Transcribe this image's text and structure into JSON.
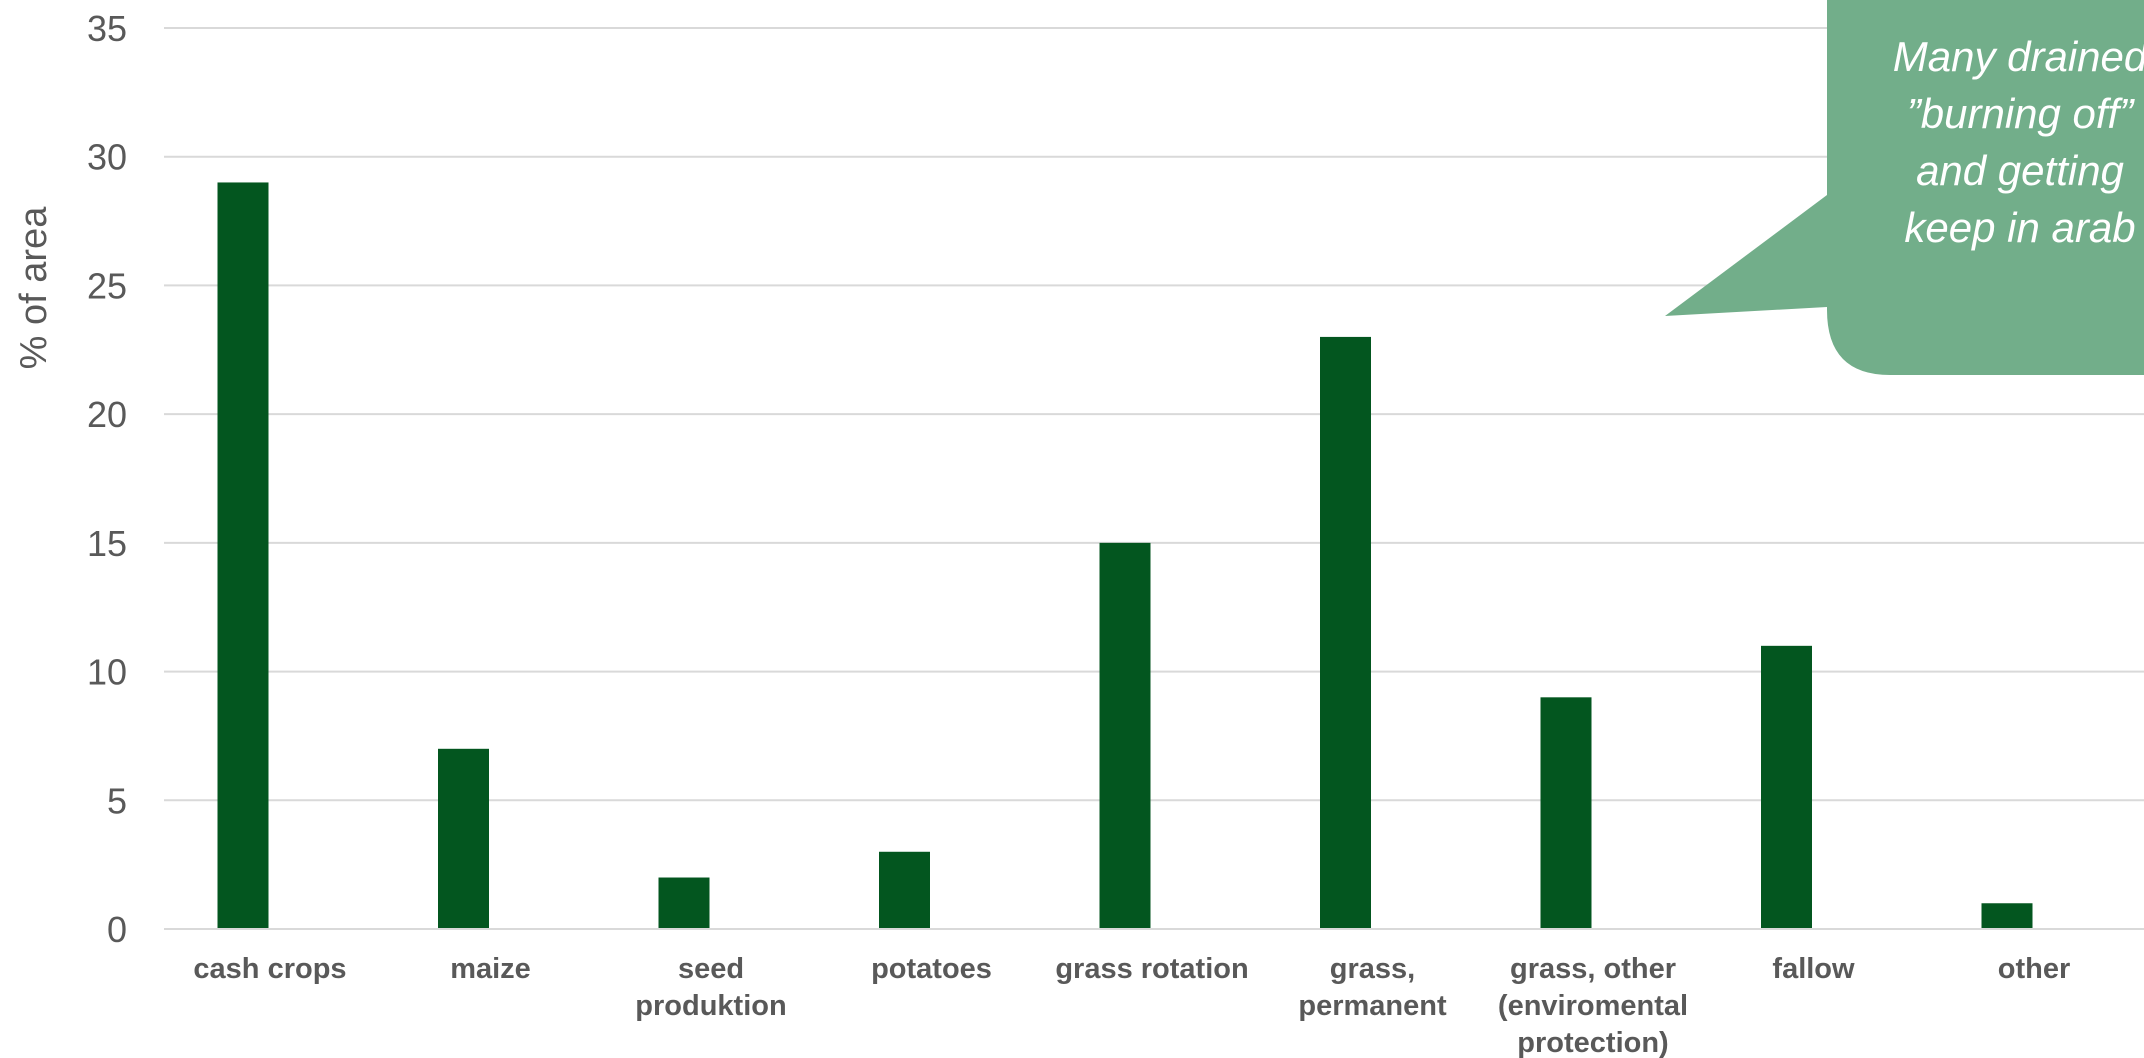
{
  "chart_data": {
    "type": "bar",
    "title": "",
    "xlabel": "",
    "ylabel": "% of area",
    "ylim": [
      0,
      35
    ],
    "y_ticks": [
      0,
      5,
      10,
      15,
      20,
      25,
      30,
      35
    ],
    "grid": true,
    "legend": "none",
    "bar_color": "#03561f",
    "categories": [
      [
        "cash crops"
      ],
      [
        "maize"
      ],
      [
        "seed",
        "produktion"
      ],
      [
        "potatoes"
      ],
      [
        "grass rotation"
      ],
      [
        "grass,",
        "permanent"
      ],
      [
        "grass, other",
        "(enviromental",
        "protection)"
      ],
      [
        "fallow"
      ],
      [
        "other"
      ]
    ],
    "values": [
      29,
      7,
      2,
      3,
      15,
      23,
      9,
      11,
      1
    ]
  },
  "callout": {
    "lines": [
      "Many drained",
      "”burning off”",
      "and getting",
      "keep in arab"
    ],
    "color": "#72ae8a",
    "text_color": "#ffffff"
  }
}
